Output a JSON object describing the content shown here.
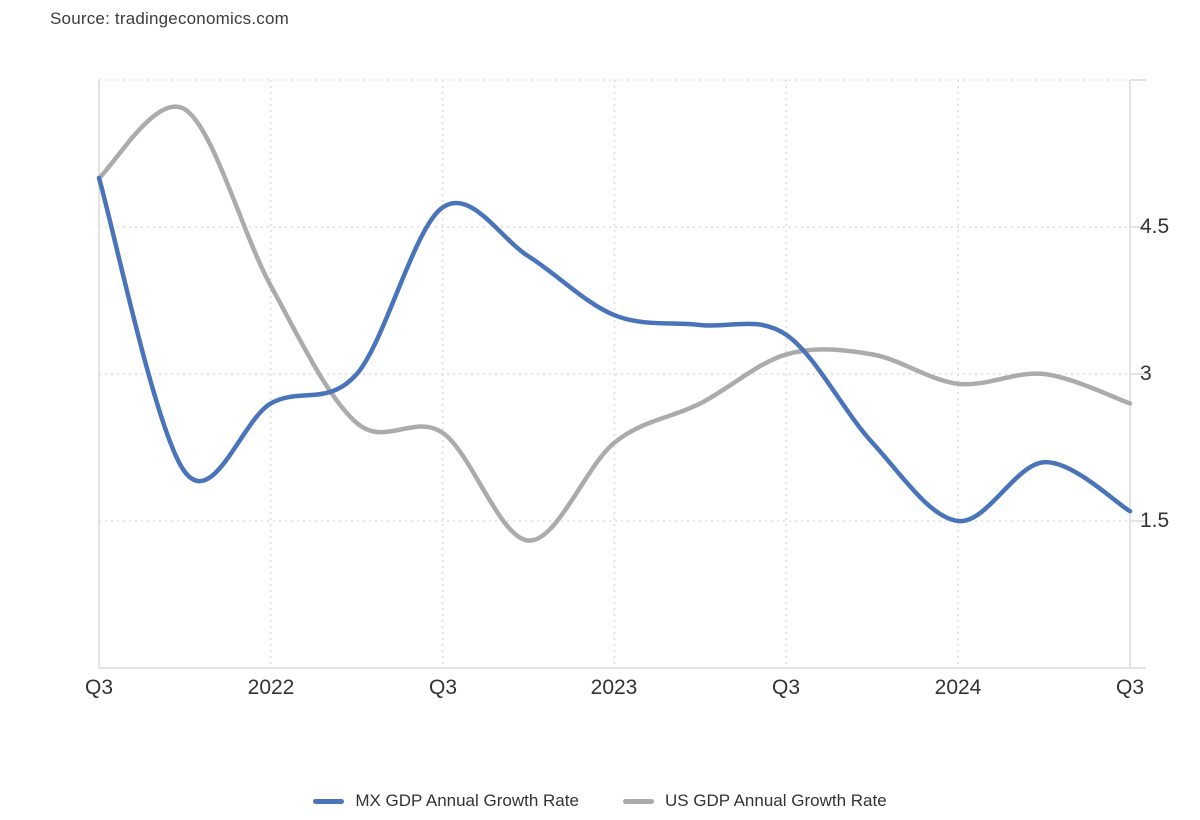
{
  "source": "Source: tradingeconomics.com",
  "chart_data": {
    "type": "line",
    "title": "",
    "xlabel": "",
    "ylabel": "",
    "categories": [
      "Q3 2021",
      "Q4 2021",
      "Q1 2022",
      "Q2 2022",
      "Q3 2022",
      "Q4 2022",
      "Q1 2023",
      "Q2 2023",
      "Q3 2023",
      "Q4 2023",
      "Q1 2024",
      "Q2 2024",
      "Q3 2024"
    ],
    "series": [
      {
        "name": "MX GDP Annual Growth Rate",
        "color": "#4a74b9",
        "values": [
          5.0,
          2.0,
          2.7,
          3.0,
          4.7,
          4.2,
          3.6,
          3.5,
          3.4,
          2.3,
          1.5,
          2.1,
          1.6
        ]
      },
      {
        "name": "US GDP Annual Growth Rate",
        "color": "#ababab",
        "values": [
          5.0,
          5.7,
          3.9,
          2.5,
          2.4,
          1.3,
          2.3,
          2.7,
          3.2,
          3.2,
          2.9,
          3.0,
          2.7
        ]
      }
    ],
    "xtick_labels": [
      "Q3",
      "2022",
      "Q3",
      "2023",
      "Q3",
      "2024",
      "Q3"
    ],
    "xtick_indices": [
      0,
      2,
      4,
      6,
      8,
      10,
      12
    ],
    "ytick_labels": [
      "4.5",
      "3",
      "1.5"
    ],
    "ytick_values": [
      4.5,
      3,
      1.5
    ],
    "ylim": [
      0,
      6
    ],
    "grid_values_y": [
      6,
      4.5,
      3,
      1.5
    ],
    "grid_indices_x": [
      2,
      4,
      6,
      8,
      10
    ],
    "grid": "dotted",
    "legend_position": "bottom",
    "line_width": 4.5,
    "axis_color": "#e3e3e3",
    "grid_color": "#dedede",
    "text_color": "#333333"
  }
}
